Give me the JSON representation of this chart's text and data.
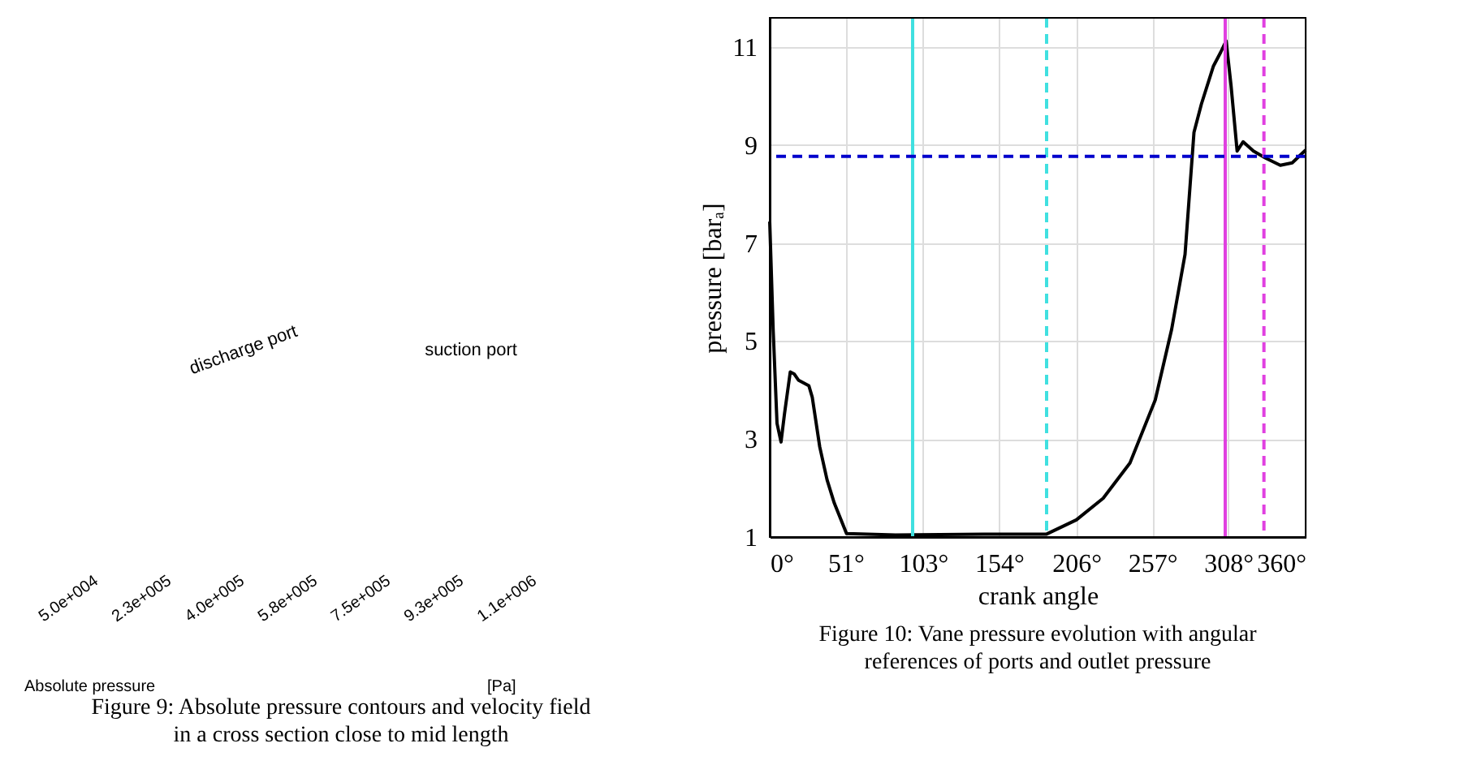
{
  "chart_data": [
    {
      "type": "other",
      "annotations": [
        "discharge port",
        "suction port",
        "5.0e+004",
        "2.3e+005",
        "4.0e+005",
        "5.8e+005",
        "7.5e+005",
        "9.3e+005",
        "1.1e+006",
        "Absolute pressure",
        "[Pa]",
        "Figure 9: Absolute pressure contours and velocity field in a cross section close to mid length"
      ]
    },
    {
      "type": "line",
      "xlabel": "crank angle",
      "ylabel": "pressure [barₐ]",
      "grid": true,
      "marker": "none",
      "line_style": "solid",
      "x": [
        0,
        2.3,
        4.9,
        7.6,
        9.9,
        13.8,
        16.4,
        19.4,
        26.3,
        28.6,
        33.6,
        38.5,
        43.4,
        51.6,
        84.5,
        144,
        186,
        206,
        224,
        242,
        259,
        270,
        279,
        285,
        290,
        298,
        303,
        306.6,
        309.9,
        314,
        318,
        325,
        333,
        343,
        351,
        360
      ],
      "series": [
        {
          "color": "#000000",
          "values": [
            7.44,
            5.24,
            3.32,
            2.94,
            3.51,
            4.37,
            4.33,
            4.2,
            4.09,
            3.85,
            2.84,
            2.17,
            1.69,
            1.07,
            1.04,
            1.06,
            1.06,
            1.35,
            1.79,
            2.51,
            3.8,
            5.24,
            6.77,
            9.26,
            9.84,
            10.61,
            10.9,
            11.13,
            10.22,
            8.88,
            9.07,
            8.88,
            8.74,
            8.59,
            8.64,
            8.9
          ]
        }
      ],
      "xlim": [
        0,
        360
      ],
      "ylim": [
        1,
        11.6
      ],
      "xticks": [
        {
          "value": 0,
          "label": "0°"
        },
        {
          "value": 51,
          "label": "51°"
        },
        {
          "value": 103,
          "label": "103°"
        },
        {
          "value": 154,
          "label": "154°"
        },
        {
          "value": 206,
          "label": "206°"
        },
        {
          "value": 257,
          "label": "257°"
        },
        {
          "value": 308,
          "label": "308°"
        },
        {
          "value": 360,
          "label": "360°"
        }
      ],
      "yticks": [
        1,
        3,
        5,
        7,
        9,
        11
      ],
      "ref_lines": [
        {
          "axis": "x",
          "value": 96,
          "color": "#40e0e0",
          "line_style": "solid"
        },
        {
          "axis": "x",
          "value": 186,
          "color": "#40e0e0",
          "line_style": "dashed"
        },
        {
          "axis": "x",
          "value": 306,
          "color": "#e040e0",
          "line_style": "solid"
        },
        {
          "axis": "x",
          "value": 332,
          "color": "#e040e0",
          "line_style": "dashed"
        },
        {
          "axis": "y",
          "value": 8.77,
          "color": "#0000cc",
          "line_style": "dashed"
        }
      ],
      "annotations": [
        "Figure 10: Vane pressure evolution with angular references of ports and outlet pressure"
      ]
    }
  ]
}
